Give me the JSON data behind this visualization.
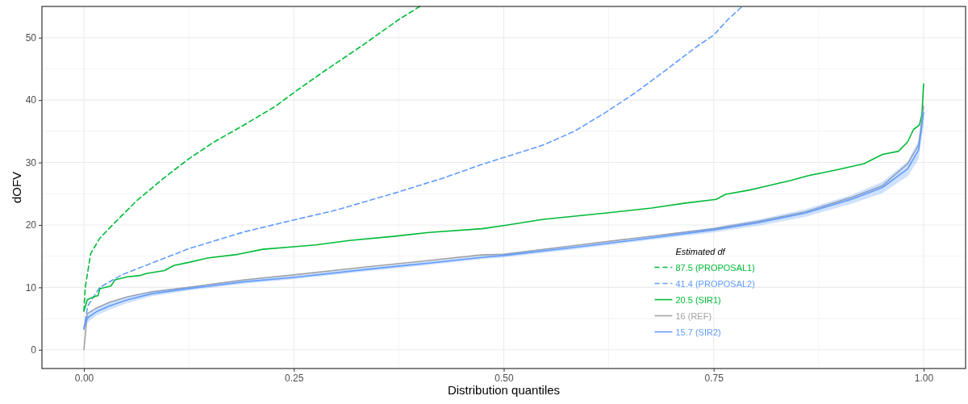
{
  "chart_data": {
    "type": "line",
    "xlabel": "Distribution quantiles",
    "ylabel": "dOFV",
    "legend_title": "Estimated df",
    "legend": "bottom right",
    "grid": true,
    "xlim": [
      -0.05,
      1.05
    ],
    "xticks": [
      {
        "value": 0,
        "label": "0.00"
      },
      {
        "value": 0.125,
        "label": null
      },
      {
        "value": 0.25,
        "label": "0.25"
      },
      {
        "value": 0.375,
        "label": null
      },
      {
        "value": 0.5,
        "label": "0.50"
      },
      {
        "value": 0.625,
        "label": null
      },
      {
        "value": 0.75,
        "label": "0.75"
      },
      {
        "value": 0.875,
        "label": null
      },
      {
        "value": 1,
        "label": "1.00"
      }
    ],
    "ylim": [
      -3,
      55
    ],
    "yticks": [
      0,
      {
        "value": 5,
        "label": null
      },
      10,
      {
        "value": 15,
        "label": null
      },
      20,
      {
        "value": 25,
        "label": null
      },
      30,
      {
        "value": 35,
        "label": null
      },
      40,
      {
        "value": 45,
        "label": null
      },
      50
    ],
    "series": [
      {
        "name": "87.5 (PROPOSAL1)",
        "color": "#00ba38",
        "line_style": "dashed",
        "x": [
          0,
          0.0015,
          0.008,
          0.019,
          0.037,
          0.063,
          0.096,
          0.125,
          0.155,
          0.188,
          0.228,
          0.25,
          0.287,
          0.331,
          0.375,
          0.4
        ],
        "values": [
          6.2,
          9.9,
          15.4,
          17.9,
          20.4,
          23.9,
          27.6,
          30.6,
          33.3,
          35.8,
          39,
          41.2,
          44.7,
          48.7,
          52.9,
          55
        ]
      },
      {
        "name": "41.4 (PROPOSAL2)",
        "color": "#619cff",
        "line_style": "dashed",
        "x": [
          0,
          0.0044,
          0.019,
          0.045,
          0.081,
          0.125,
          0.191,
          0.25,
          0.301,
          0.375,
          0.43,
          0.474,
          0.5,
          0.547,
          0.584,
          0.621,
          0.657,
          0.694,
          0.731,
          0.75,
          0.767,
          0.784
        ],
        "values": [
          3.3,
          7,
          10,
          12,
          13.9,
          16.2,
          18.9,
          20.8,
          22.4,
          25.3,
          27.6,
          29.7,
          30.8,
          32.8,
          35,
          38,
          41.2,
          44.9,
          48.7,
          50.4,
          52.9,
          55
        ]
      },
      {
        "name": "20.5 (SIR1)",
        "color": "#00ba38",
        "line_style": "solid",
        "x": [
          0,
          0.004,
          0.012,
          0.017,
          0.019,
          0.032,
          0.037,
          0.052,
          0.067,
          0.074,
          0.096,
          0.107,
          0.125,
          0.147,
          0.184,
          0.213,
          0.25,
          0.276,
          0.316,
          0.371,
          0.411,
          0.474,
          0.5,
          0.547,
          0.621,
          0.676,
          0.716,
          0.753,
          0.764,
          0.793,
          0.812,
          0.841,
          0.863,
          0.896,
          0.929,
          0.951,
          0.97,
          0.981,
          0.988,
          0.995,
          0.998,
          1
        ],
        "values": [
          6.2,
          8,
          8.5,
          8.7,
          9.8,
          10.2,
          11.2,
          11.7,
          11.9,
          12.2,
          12.7,
          13.5,
          14,
          14.7,
          15.3,
          16.1,
          16.5,
          16.8,
          17.5,
          18.2,
          18.8,
          19.4,
          19.9,
          20.9,
          21.9,
          22.7,
          23.5,
          24.1,
          24.9,
          25.6,
          26.2,
          27.1,
          27.9,
          28.8,
          29.8,
          31.3,
          31.8,
          33.3,
          35.3,
          36,
          37.7,
          42.6
        ]
      },
      {
        "name": "16 (REF)",
        "color": "#a3a3a3",
        "line_style": "solid",
        "x": [
          0,
          0.004,
          0.015,
          0.03,
          0.052,
          0.081,
          0.125,
          0.191,
          0.25,
          0.338,
          0.411,
          0.473,
          0.5,
          0.584,
          0.657,
          0.75,
          0.804,
          0.859,
          0.914,
          0.951,
          0.981,
          0.994,
          0.999,
          1
        ],
        "values": [
          0,
          5.8,
          6.7,
          7.6,
          8.5,
          9.3,
          10,
          11.2,
          12,
          13.3,
          14.3,
          15.2,
          15.3,
          16.7,
          17.9,
          19.4,
          20.6,
          22.1,
          24.4,
          26.3,
          29.8,
          32.8,
          37.7,
          39
        ]
      },
      {
        "name": "15.7 (SIR2)",
        "color": "#619cff",
        "line_style": "solid",
        "x": [
          0,
          0.002,
          0.006,
          0.015,
          0.03,
          0.052,
          0.081,
          0.125,
          0.191,
          0.25,
          0.338,
          0.411,
          0.473,
          0.5,
          0.584,
          0.657,
          0.75,
          0.804,
          0.859,
          0.914,
          0.951,
          0.981,
          0.994,
          1
        ],
        "values": [
          3.4,
          4.6,
          5.3,
          6.1,
          7,
          8,
          9,
          9.8,
          10.9,
          11.6,
          12.9,
          13.9,
          14.8,
          15.1,
          16.4,
          17.6,
          19.2,
          20.4,
          21.9,
          24.1,
          26,
          29,
          32,
          38
        ],
        "lower": [
          2.8,
          3.9,
          4.6,
          5.5,
          6.4,
          7.5,
          8.6,
          9.5,
          10.6,
          11.3,
          12.6,
          13.6,
          14.5,
          14.8,
          16.1,
          17.3,
          18.8,
          19.9,
          21.3,
          23.4,
          25.1,
          27.8,
          30.5,
          36
        ],
        "upper": [
          4,
          5.3,
          6,
          6.7,
          7.6,
          8.5,
          9.4,
          10.1,
          11.2,
          11.9,
          13.2,
          14.2,
          15.1,
          15.4,
          16.7,
          17.9,
          19.6,
          20.9,
          22.5,
          24.8,
          26.9,
          30.2,
          33.5,
          40
        ]
      }
    ]
  }
}
